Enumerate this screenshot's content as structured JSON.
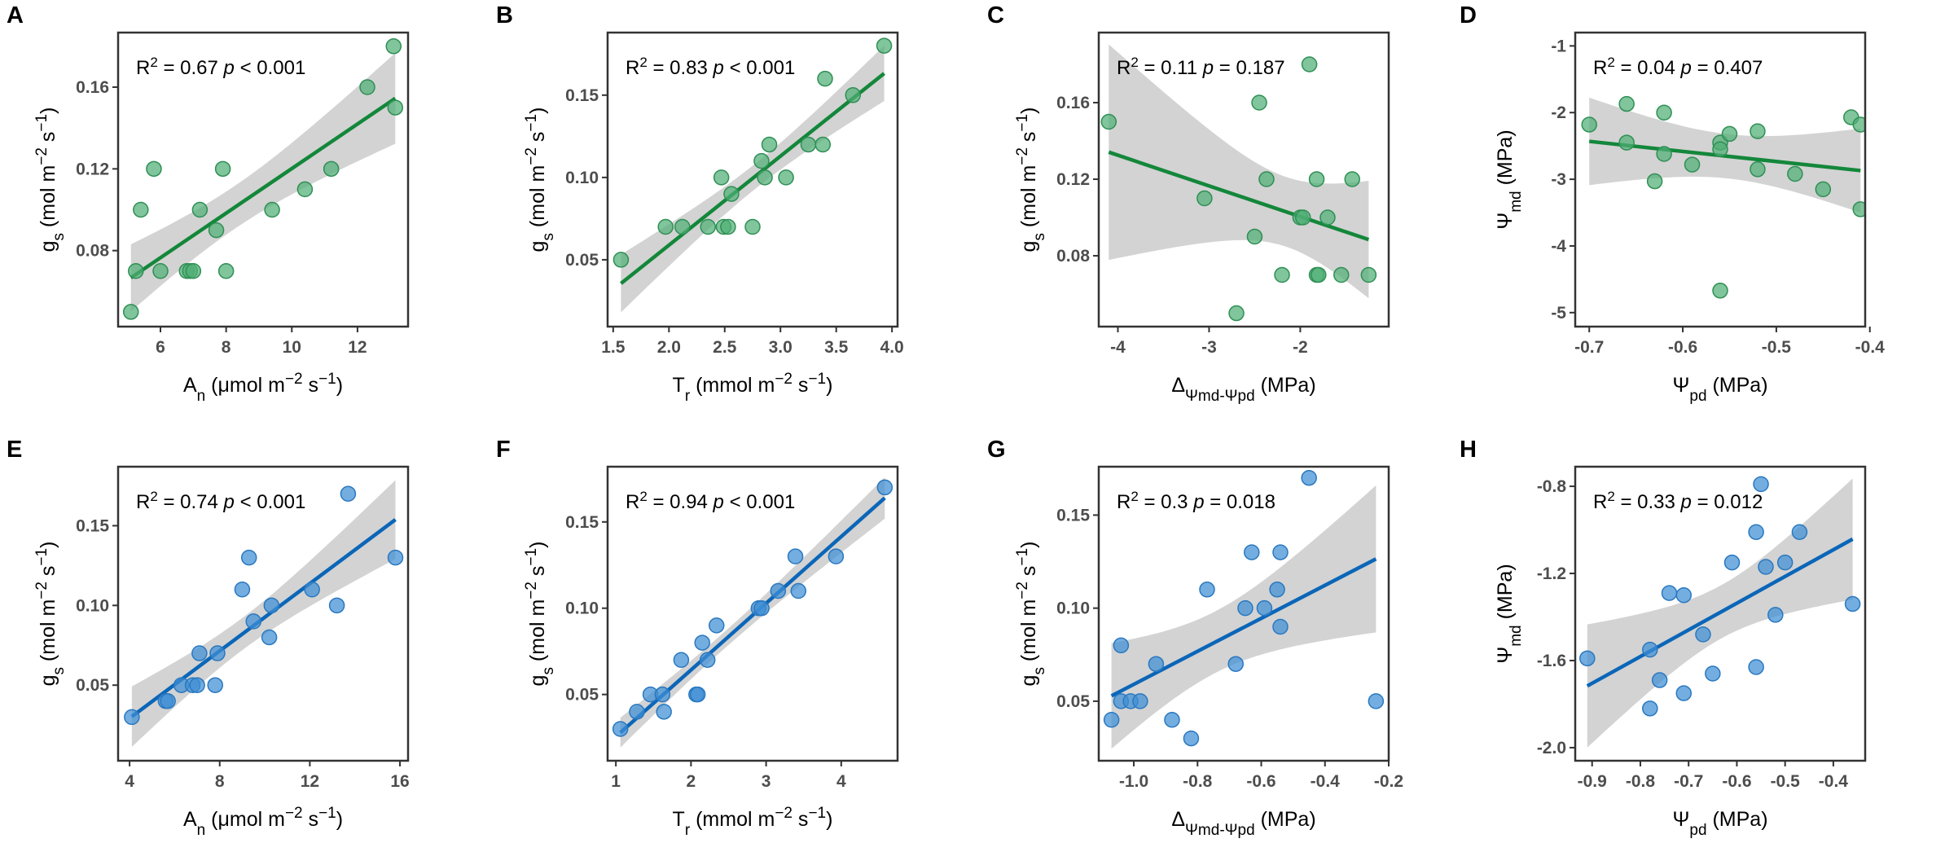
{
  "colors": {
    "green_fill": "#4fae74",
    "green_stroke": "#2f8f55",
    "green_line": "#13873a",
    "blue_fill": "#3f8fd6",
    "blue_stroke": "#2a78bf",
    "blue_line": "#0b66b8",
    "band": "#d3d3d3",
    "axis": "#333333"
  },
  "chart_data": [
    {
      "type": "scatter",
      "panel": "A",
      "color": "green",
      "annotation": {
        "r2": "0.67",
        "p_op": "<",
        "p": "0.001"
      },
      "xlabel": [
        {
          "t": "A"
        },
        {
          "t": "n",
          "s": "sub"
        },
        {
          "t": " (μmol m"
        },
        {
          "t": "−2",
          "s": "sup"
        },
        {
          "t": " s"
        },
        {
          "t": "−1",
          "s": "sup"
        },
        {
          "t": ")"
        }
      ],
      "ylabel": [
        {
          "t": "g"
        },
        {
          "t": "s",
          "s": "sub"
        },
        {
          "t": " (mol m"
        },
        {
          "t": "−2",
          "s": "sup"
        },
        {
          "t": " s"
        },
        {
          "t": "−1",
          "s": "sup"
        },
        {
          "t": ")"
        }
      ],
      "xlim": [
        4.71,
        13.54
      ],
      "ylim": [
        0.0428,
        0.1867
      ],
      "xticks": [
        6,
        8,
        10,
        12
      ],
      "xtick_labels": [
        "6",
        "8",
        "10",
        "12"
      ],
      "yticks": [
        0.08,
        0.12,
        0.16
      ],
      "ytick_labels": [
        "0.08",
        "0.12",
        "0.16"
      ],
      "x": [
        5.1,
        5.25,
        5.4,
        5.8,
        6.0,
        6.8,
        6.9,
        7.0,
        7.2,
        7.7,
        7.9,
        8.0,
        9.4,
        10.4,
        11.2,
        12.3,
        13.1,
        13.15
      ],
      "y": [
        0.05,
        0.07,
        0.1,
        0.12,
        0.07,
        0.07,
        0.07,
        0.07,
        0.1,
        0.09,
        0.12,
        0.07,
        0.1,
        0.11,
        0.12,
        0.16,
        0.18,
        0.15
      ]
    },
    {
      "type": "scatter",
      "panel": "B",
      "color": "green",
      "annotation": {
        "r2": "0.83",
        "p_op": "<",
        "p": "0.001"
      },
      "xlabel": [
        {
          "t": "T"
        },
        {
          "t": "r",
          "s": "sub"
        },
        {
          "t": " (mmol m"
        },
        {
          "t": "−2",
          "s": "sup"
        },
        {
          "t": " s"
        },
        {
          "t": "−1",
          "s": "sup"
        },
        {
          "t": ")"
        }
      ],
      "ylabel": [
        {
          "t": "g"
        },
        {
          "t": "s",
          "s": "sub"
        },
        {
          "t": " (mol m"
        },
        {
          "t": "−2",
          "s": "sup"
        },
        {
          "t": " s"
        },
        {
          "t": "−1",
          "s": "sup"
        },
        {
          "t": ")"
        }
      ],
      "xlim": [
        1.45,
        4.05
      ],
      "ylim": [
        0.0094,
        0.188
      ],
      "xticks": [
        1.5,
        2.0,
        2.5,
        3.0,
        3.5,
        4.0
      ],
      "xtick_labels": [
        "1.5",
        "2.0",
        "2.5",
        "3.0",
        "3.5",
        "4.0"
      ],
      "yticks": [
        0.05,
        0.1,
        0.15
      ],
      "ytick_labels": [
        "0.05",
        "0.10",
        "0.15"
      ],
      "x": [
        1.57,
        1.97,
        2.12,
        2.35,
        2.47,
        2.49,
        2.53,
        2.56,
        2.75,
        2.83,
        2.86,
        2.9,
        3.05,
        3.25,
        3.38,
        3.4,
        3.65,
        3.93
      ],
      "y": [
        0.05,
        0.07,
        0.07,
        0.07,
        0.1,
        0.07,
        0.07,
        0.09,
        0.07,
        0.11,
        0.1,
        0.12,
        0.1,
        0.12,
        0.12,
        0.16,
        0.15,
        0.18
      ]
    },
    {
      "type": "scatter",
      "panel": "C",
      "color": "green",
      "annotation": {
        "r2": "0.11",
        "p_op": "=",
        "p": "0.187"
      },
      "xlabel": [
        {
          "t": "Δ"
        },
        {
          "t": "Ψmd-Ψpd",
          "s": "sub"
        },
        {
          "t": " (MPa)"
        }
      ],
      "ylabel": [
        {
          "t": "g"
        },
        {
          "t": "s",
          "s": "sub"
        },
        {
          "t": " (mol m"
        },
        {
          "t": "−2",
          "s": "sup"
        },
        {
          "t": " s"
        },
        {
          "t": "−1",
          "s": "sup"
        },
        {
          "t": ")"
        }
      ],
      "xlim": [
        -4.21,
        -1.03
      ],
      "ylim": [
        0.043,
        0.1966
      ],
      "xticks": [
        -4,
        -3,
        -2
      ],
      "xtick_labels": [
        "-4",
        "-3",
        "-2"
      ],
      "yticks": [
        0.08,
        0.12,
        0.16
      ],
      "ytick_labels": [
        "0.08",
        "0.12",
        "0.16"
      ],
      "x": [
        -4.1,
        -3.05,
        -2.5,
        -2.45,
        -2.37,
        -2.7,
        -2.2,
        -2.0,
        -1.97,
        -1.9,
        -1.82,
        -1.82,
        -1.8,
        -1.7,
        -1.55,
        -1.43,
        -1.25
      ],
      "y": [
        0.15,
        0.11,
        0.09,
        0.16,
        0.12,
        0.05,
        0.07,
        0.1,
        0.1,
        0.18,
        0.12,
        0.07,
        0.07,
        0.1,
        0.07,
        0.12,
        0.07
      ]
    },
    {
      "type": "scatter",
      "panel": "D",
      "color": "green",
      "annotation": {
        "r2": "0.04",
        "p_op": "=",
        "p": "0.407"
      },
      "xlabel": [
        {
          "t": "Ψ"
        },
        {
          "t": "pd",
          "s": "sub"
        },
        {
          "t": " (MPa)"
        }
      ],
      "ylabel": [
        {
          "t": "Ψ"
        },
        {
          "t": "md",
          "s": "sub"
        },
        {
          "t": " (MPa)"
        }
      ],
      "xlim": [
        -0.715,
        -0.405
      ],
      "ylim": [
        -5.21,
        -0.8
      ],
      "xticks": [
        -0.7,
        -0.6,
        -0.5,
        -0.4
      ],
      "xtick_labels": [
        "-0.7",
        "-0.6",
        "-0.5",
        "-0.4"
      ],
      "yticks": [
        -5,
        -4,
        -3,
        -2,
        -1
      ],
      "ytick_labels": [
        "-5",
        "-4",
        "-3",
        "-2",
        "-1"
      ],
      "x": [
        -0.7,
        -0.66,
        -0.66,
        -0.63,
        -0.62,
        -0.62,
        -0.59,
        -0.56,
        -0.56,
        -0.55,
        -0.56,
        -0.52,
        -0.52,
        -0.48,
        -0.45,
        -0.42,
        -0.41,
        -0.41
      ],
      "y": [
        -2.18,
        -1.87,
        -2.45,
        -3.03,
        -2.0,
        -2.62,
        -2.78,
        -2.45,
        -2.55,
        -2.32,
        -4.67,
        -2.28,
        -2.85,
        -2.92,
        -3.15,
        -2.07,
        -2.18,
        -3.45
      ]
    },
    {
      "type": "scatter",
      "panel": "E",
      "color": "blue",
      "annotation": {
        "r2": "0.74",
        "p_op": "<",
        "p": "0.001"
      },
      "xlabel": [
        {
          "t": "A"
        },
        {
          "t": "n",
          "s": "sub"
        },
        {
          "t": " (μmol m"
        },
        {
          "t": "−2",
          "s": "sup"
        },
        {
          "t": " s"
        },
        {
          "t": "−1",
          "s": "sup"
        },
        {
          "t": ")"
        }
      ],
      "ylabel": [
        {
          "t": "g"
        },
        {
          "t": "s",
          "s": "sub"
        },
        {
          "t": " (mol m"
        },
        {
          "t": "−2",
          "s": "sup"
        },
        {
          "t": " s"
        },
        {
          "t": "−1",
          "s": "sup"
        },
        {
          "t": ")"
        }
      ],
      "xlim": [
        3.49,
        16.36
      ],
      "ylim": [
        0.0026,
        0.187
      ],
      "xticks": [
        4,
        8,
        12,
        16
      ],
      "xtick_labels": [
        "4",
        "8",
        "12",
        "16"
      ],
      "yticks": [
        0.05,
        0.1,
        0.15
      ],
      "ytick_labels": [
        "0.05",
        "0.10",
        "0.15"
      ],
      "x": [
        4.1,
        5.6,
        5.7,
        6.3,
        6.8,
        7.0,
        7.1,
        7.8,
        7.9,
        9.0,
        9.3,
        9.5,
        10.2,
        10.3,
        12.1,
        13.2,
        13.7,
        15.8
      ],
      "y": [
        0.03,
        0.04,
        0.04,
        0.05,
        0.05,
        0.05,
        0.07,
        0.05,
        0.07,
        0.11,
        0.13,
        0.09,
        0.08,
        0.1,
        0.11,
        0.1,
        0.17,
        0.13
      ]
    },
    {
      "type": "scatter",
      "panel": "F",
      "color": "blue",
      "annotation": {
        "r2": "0.94",
        "p_op": "<",
        "p": "0.001"
      },
      "xlabel": [
        {
          "t": "T"
        },
        {
          "t": "r",
          "s": "sub"
        },
        {
          "t": " (mmol m"
        },
        {
          "t": "−2",
          "s": "sup"
        },
        {
          "t": " s"
        },
        {
          "t": "−1",
          "s": "sup"
        },
        {
          "t": ")"
        }
      ],
      "ylabel": [
        {
          "t": "g"
        },
        {
          "t": "s",
          "s": "sub"
        },
        {
          "t": " (mol m"
        },
        {
          "t": "−2",
          "s": "sup"
        },
        {
          "t": " s"
        },
        {
          "t": "−1",
          "s": "sup"
        },
        {
          "t": ")"
        }
      ],
      "xlim": [
        0.89,
        4.75
      ],
      "ylim": [
        0.0116,
        0.182
      ],
      "xticks": [
        1,
        2,
        3,
        4
      ],
      "xtick_labels": [
        "1",
        "2",
        "3",
        "4"
      ],
      "yticks": [
        0.05,
        0.1,
        0.15
      ],
      "ytick_labels": [
        "0.05",
        "0.10",
        "0.15"
      ],
      "x": [
        1.06,
        1.28,
        1.46,
        1.62,
        1.64,
        1.87,
        2.07,
        2.09,
        2.15,
        2.22,
        2.34,
        2.9,
        2.94,
        3.16,
        3.39,
        3.43,
        3.93,
        4.58
      ],
      "y": [
        0.03,
        0.04,
        0.05,
        0.05,
        0.04,
        0.07,
        0.05,
        0.05,
        0.08,
        0.07,
        0.09,
        0.1,
        0.1,
        0.11,
        0.13,
        0.11,
        0.13,
        0.17
      ]
    },
    {
      "type": "scatter",
      "panel": "G",
      "color": "blue",
      "annotation": {
        "r2": "0.3",
        "p_op": "=",
        "p": "0.018"
      },
      "xlabel": [
        {
          "t": "Δ"
        },
        {
          "t": "Ψmd-Ψpd",
          "s": "sub"
        },
        {
          "t": " (MPa)"
        }
      ],
      "ylabel": [
        {
          "t": "g"
        },
        {
          "t": "s",
          "s": "sub"
        },
        {
          "t": " (mol m"
        },
        {
          "t": "−2",
          "s": "sup"
        },
        {
          "t": " s"
        },
        {
          "t": "−1",
          "s": "sup"
        },
        {
          "t": ")"
        }
      ],
      "xlim": [
        -1.11,
        -0.2
      ],
      "ylim": [
        0.018,
        0.176
      ],
      "xticks": [
        -1.0,
        -0.8,
        -0.6,
        -0.4,
        -0.2
      ],
      "xtick_labels": [
        "-1.0",
        "-0.8",
        "-0.6",
        "-0.4",
        "-0.2"
      ],
      "yticks": [
        0.05,
        0.1,
        0.15
      ],
      "ytick_labels": [
        "0.05",
        "0.10",
        "0.15"
      ],
      "x": [
        -1.07,
        -1.04,
        -1.04,
        -1.01,
        -0.98,
        -0.93,
        -0.88,
        -0.82,
        -0.77,
        -0.68,
        -0.65,
        -0.63,
        -0.59,
        -0.55,
        -0.54,
        -0.54,
        -0.45,
        -0.24
      ],
      "y": [
        0.04,
        0.08,
        0.05,
        0.05,
        0.05,
        0.07,
        0.04,
        0.03,
        0.11,
        0.07,
        0.1,
        0.13,
        0.1,
        0.11,
        0.13,
        0.09,
        0.17,
        0.05
      ]
    },
    {
      "type": "scatter",
      "panel": "H",
      "color": "blue",
      "annotation": {
        "r2": "0.33",
        "p_op": "=",
        "p": "0.012"
      },
      "xlabel": [
        {
          "t": "Ψ"
        },
        {
          "t": "pd",
          "s": "sub"
        },
        {
          "t": " (MPa)"
        }
      ],
      "ylabel": [
        {
          "t": "Ψ"
        },
        {
          "t": "md",
          "s": "sub"
        },
        {
          "t": " (MPa)"
        }
      ],
      "xlim": [
        -0.935,
        -0.334
      ],
      "ylim": [
        -2.06,
        -0.71
      ],
      "xticks": [
        -0.9,
        -0.8,
        -0.7,
        -0.6,
        -0.5,
        -0.4
      ],
      "xtick_labels": [
        "-0.9",
        "-0.8",
        "-0.7",
        "-0.6",
        "-0.5",
        "-0.4"
      ],
      "yticks": [
        -2.0,
        -1.6,
        -1.2,
        -0.8
      ],
      "ytick_labels": [
        "-2.0",
        "-1.6",
        "-1.2",
        "-0.8"
      ],
      "x": [
        -0.91,
        -0.78,
        -0.78,
        -0.76,
        -0.74,
        -0.71,
        -0.71,
        -0.67,
        -0.65,
        -0.61,
        -0.56,
        -0.56,
        -0.55,
        -0.54,
        -0.52,
        -0.5,
        -0.47,
        -0.36
      ],
      "y": [
        -1.59,
        -1.55,
        -1.82,
        -1.69,
        -1.29,
        -1.3,
        -1.75,
        -1.48,
        -1.66,
        -1.15,
        -1.63,
        -1.01,
        -0.79,
        -1.17,
        -1.39,
        -1.15,
        -1.01,
        -1.34
      ]
    }
  ]
}
